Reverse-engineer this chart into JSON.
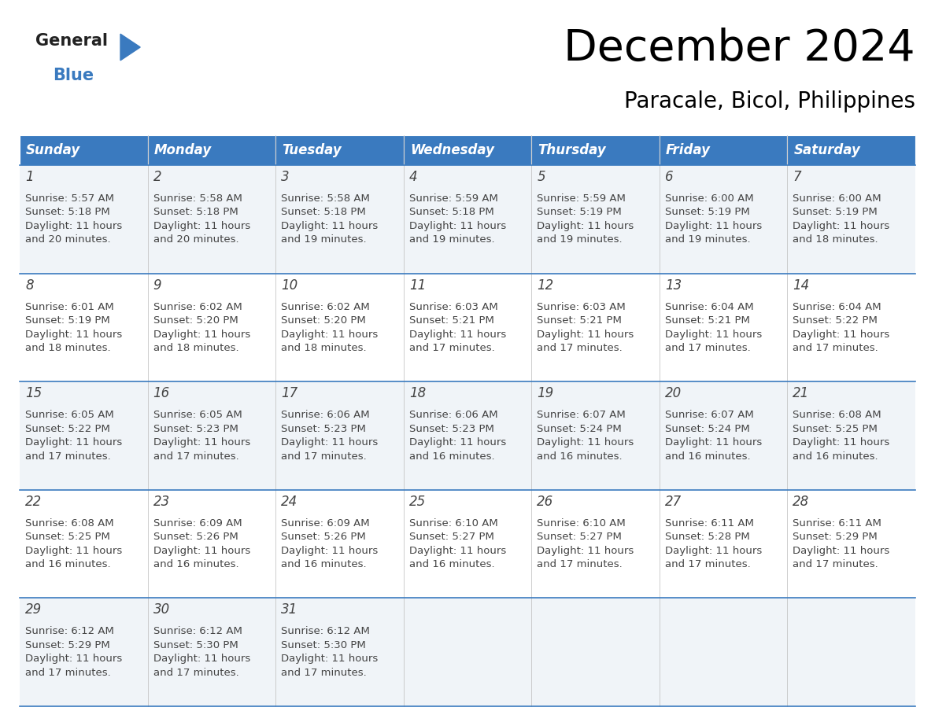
{
  "title": "December 2024",
  "subtitle": "Paracale, Bicol, Philippines",
  "header_color": "#3a7abf",
  "header_text_color": "#ffffff",
  "row_bg_odd": "#f0f4f8",
  "row_bg_even": "#ffffff",
  "text_color": "#444444",
  "border_color": "#3a7abf",
  "days_of_week": [
    "Sunday",
    "Monday",
    "Tuesday",
    "Wednesday",
    "Thursday",
    "Friday",
    "Saturday"
  ],
  "weeks": [
    [
      {
        "day": "1",
        "sunrise": "5:57 AM",
        "sunset": "5:18 PM",
        "daylight_h": "11 hours",
        "daylight_m": "and 20 minutes."
      },
      {
        "day": "2",
        "sunrise": "5:58 AM",
        "sunset": "5:18 PM",
        "daylight_h": "11 hours",
        "daylight_m": "and 20 minutes."
      },
      {
        "day": "3",
        "sunrise": "5:58 AM",
        "sunset": "5:18 PM",
        "daylight_h": "11 hours",
        "daylight_m": "and 19 minutes."
      },
      {
        "day": "4",
        "sunrise": "5:59 AM",
        "sunset": "5:18 PM",
        "daylight_h": "11 hours",
        "daylight_m": "and 19 minutes."
      },
      {
        "day": "5",
        "sunrise": "5:59 AM",
        "sunset": "5:19 PM",
        "daylight_h": "11 hours",
        "daylight_m": "and 19 minutes."
      },
      {
        "day": "6",
        "sunrise": "6:00 AM",
        "sunset": "5:19 PM",
        "daylight_h": "11 hours",
        "daylight_m": "and 19 minutes."
      },
      {
        "day": "7",
        "sunrise": "6:00 AM",
        "sunset": "5:19 PM",
        "daylight_h": "11 hours",
        "daylight_m": "and 18 minutes."
      }
    ],
    [
      {
        "day": "8",
        "sunrise": "6:01 AM",
        "sunset": "5:19 PM",
        "daylight_h": "11 hours",
        "daylight_m": "and 18 minutes."
      },
      {
        "day": "9",
        "sunrise": "6:02 AM",
        "sunset": "5:20 PM",
        "daylight_h": "11 hours",
        "daylight_m": "and 18 minutes."
      },
      {
        "day": "10",
        "sunrise": "6:02 AM",
        "sunset": "5:20 PM",
        "daylight_h": "11 hours",
        "daylight_m": "and 18 minutes."
      },
      {
        "day": "11",
        "sunrise": "6:03 AM",
        "sunset": "5:21 PM",
        "daylight_h": "11 hours",
        "daylight_m": "and 17 minutes."
      },
      {
        "day": "12",
        "sunrise": "6:03 AM",
        "sunset": "5:21 PM",
        "daylight_h": "11 hours",
        "daylight_m": "and 17 minutes."
      },
      {
        "day": "13",
        "sunrise": "6:04 AM",
        "sunset": "5:21 PM",
        "daylight_h": "11 hours",
        "daylight_m": "and 17 minutes."
      },
      {
        "day": "14",
        "sunrise": "6:04 AM",
        "sunset": "5:22 PM",
        "daylight_h": "11 hours",
        "daylight_m": "and 17 minutes."
      }
    ],
    [
      {
        "day": "15",
        "sunrise": "6:05 AM",
        "sunset": "5:22 PM",
        "daylight_h": "11 hours",
        "daylight_m": "and 17 minutes."
      },
      {
        "day": "16",
        "sunrise": "6:05 AM",
        "sunset": "5:23 PM",
        "daylight_h": "11 hours",
        "daylight_m": "and 17 minutes."
      },
      {
        "day": "17",
        "sunrise": "6:06 AM",
        "sunset": "5:23 PM",
        "daylight_h": "11 hours",
        "daylight_m": "and 17 minutes."
      },
      {
        "day": "18",
        "sunrise": "6:06 AM",
        "sunset": "5:23 PM",
        "daylight_h": "11 hours",
        "daylight_m": "and 16 minutes."
      },
      {
        "day": "19",
        "sunrise": "6:07 AM",
        "sunset": "5:24 PM",
        "daylight_h": "11 hours",
        "daylight_m": "and 16 minutes."
      },
      {
        "day": "20",
        "sunrise": "6:07 AM",
        "sunset": "5:24 PM",
        "daylight_h": "11 hours",
        "daylight_m": "and 16 minutes."
      },
      {
        "day": "21",
        "sunrise": "6:08 AM",
        "sunset": "5:25 PM",
        "daylight_h": "11 hours",
        "daylight_m": "and 16 minutes."
      }
    ],
    [
      {
        "day": "22",
        "sunrise": "6:08 AM",
        "sunset": "5:25 PM",
        "daylight_h": "11 hours",
        "daylight_m": "and 16 minutes."
      },
      {
        "day": "23",
        "sunrise": "6:09 AM",
        "sunset": "5:26 PM",
        "daylight_h": "11 hours",
        "daylight_m": "and 16 minutes."
      },
      {
        "day": "24",
        "sunrise": "6:09 AM",
        "sunset": "5:26 PM",
        "daylight_h": "11 hours",
        "daylight_m": "and 16 minutes."
      },
      {
        "day": "25",
        "sunrise": "6:10 AM",
        "sunset": "5:27 PM",
        "daylight_h": "11 hours",
        "daylight_m": "and 16 minutes."
      },
      {
        "day": "26",
        "sunrise": "6:10 AM",
        "sunset": "5:27 PM",
        "daylight_h": "11 hours",
        "daylight_m": "and 17 minutes."
      },
      {
        "day": "27",
        "sunrise": "6:11 AM",
        "sunset": "5:28 PM",
        "daylight_h": "11 hours",
        "daylight_m": "and 17 minutes."
      },
      {
        "day": "28",
        "sunrise": "6:11 AM",
        "sunset": "5:29 PM",
        "daylight_h": "11 hours",
        "daylight_m": "and 17 minutes."
      }
    ],
    [
      {
        "day": "29",
        "sunrise": "6:12 AM",
        "sunset": "5:29 PM",
        "daylight_h": "11 hours",
        "daylight_m": "and 17 minutes."
      },
      {
        "day": "30",
        "sunrise": "6:12 AM",
        "sunset": "5:30 PM",
        "daylight_h": "11 hours",
        "daylight_m": "and 17 minutes."
      },
      {
        "day": "31",
        "sunrise": "6:12 AM",
        "sunset": "5:30 PM",
        "daylight_h": "11 hours",
        "daylight_m": "and 17 minutes."
      },
      null,
      null,
      null,
      null
    ]
  ],
  "title_fontsize": 40,
  "subtitle_fontsize": 20,
  "header_fontsize": 12,
  "day_num_fontsize": 12,
  "cell_fontsize": 9.5,
  "logo_general_color": "#222222",
  "logo_blue_color": "#3a7abf",
  "logo_triangle_color": "#3a7abf"
}
